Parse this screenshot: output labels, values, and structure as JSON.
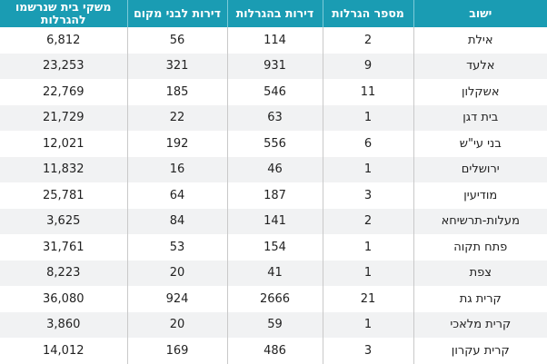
{
  "table": {
    "headers": [
      "ישוב",
      "מספר הגרלות",
      "דירות בהגרלות",
      "דירות לבני מקום",
      "משקי בית שנרשמו להגרלות"
    ],
    "rows": [
      [
        "אילת",
        "2",
        "114",
        "56",
        "6,812"
      ],
      [
        "אלעד",
        "9",
        "931",
        "321",
        "23,253"
      ],
      [
        "אשקלון",
        "11",
        "546",
        "185",
        "22,769"
      ],
      [
        "בית דגן",
        "1",
        "63",
        "22",
        "21,729"
      ],
      [
        "בני עי\"ש",
        "6",
        "556",
        "192",
        "12,021"
      ],
      [
        "ירושלים",
        "1",
        "46",
        "16",
        "11,832"
      ],
      [
        "מודיעין",
        "3",
        "187",
        "64",
        "25,781"
      ],
      [
        "מעלות-תרשיחא",
        "2",
        "141",
        "84",
        "3,625"
      ],
      [
        "פתח תקוה",
        "1",
        "154",
        "53",
        "31,761"
      ],
      [
        "צפת",
        "1",
        "41",
        "20",
        "8,223"
      ],
      [
        "קרית גת",
        "21",
        "2666",
        "924",
        "36,080"
      ],
      [
        "קרית מלאכי",
        "1",
        "59",
        "20",
        "3,860"
      ],
      [
        "קרית עקרון",
        "3",
        "486",
        "169",
        "14,012"
      ]
    ]
  }
}
